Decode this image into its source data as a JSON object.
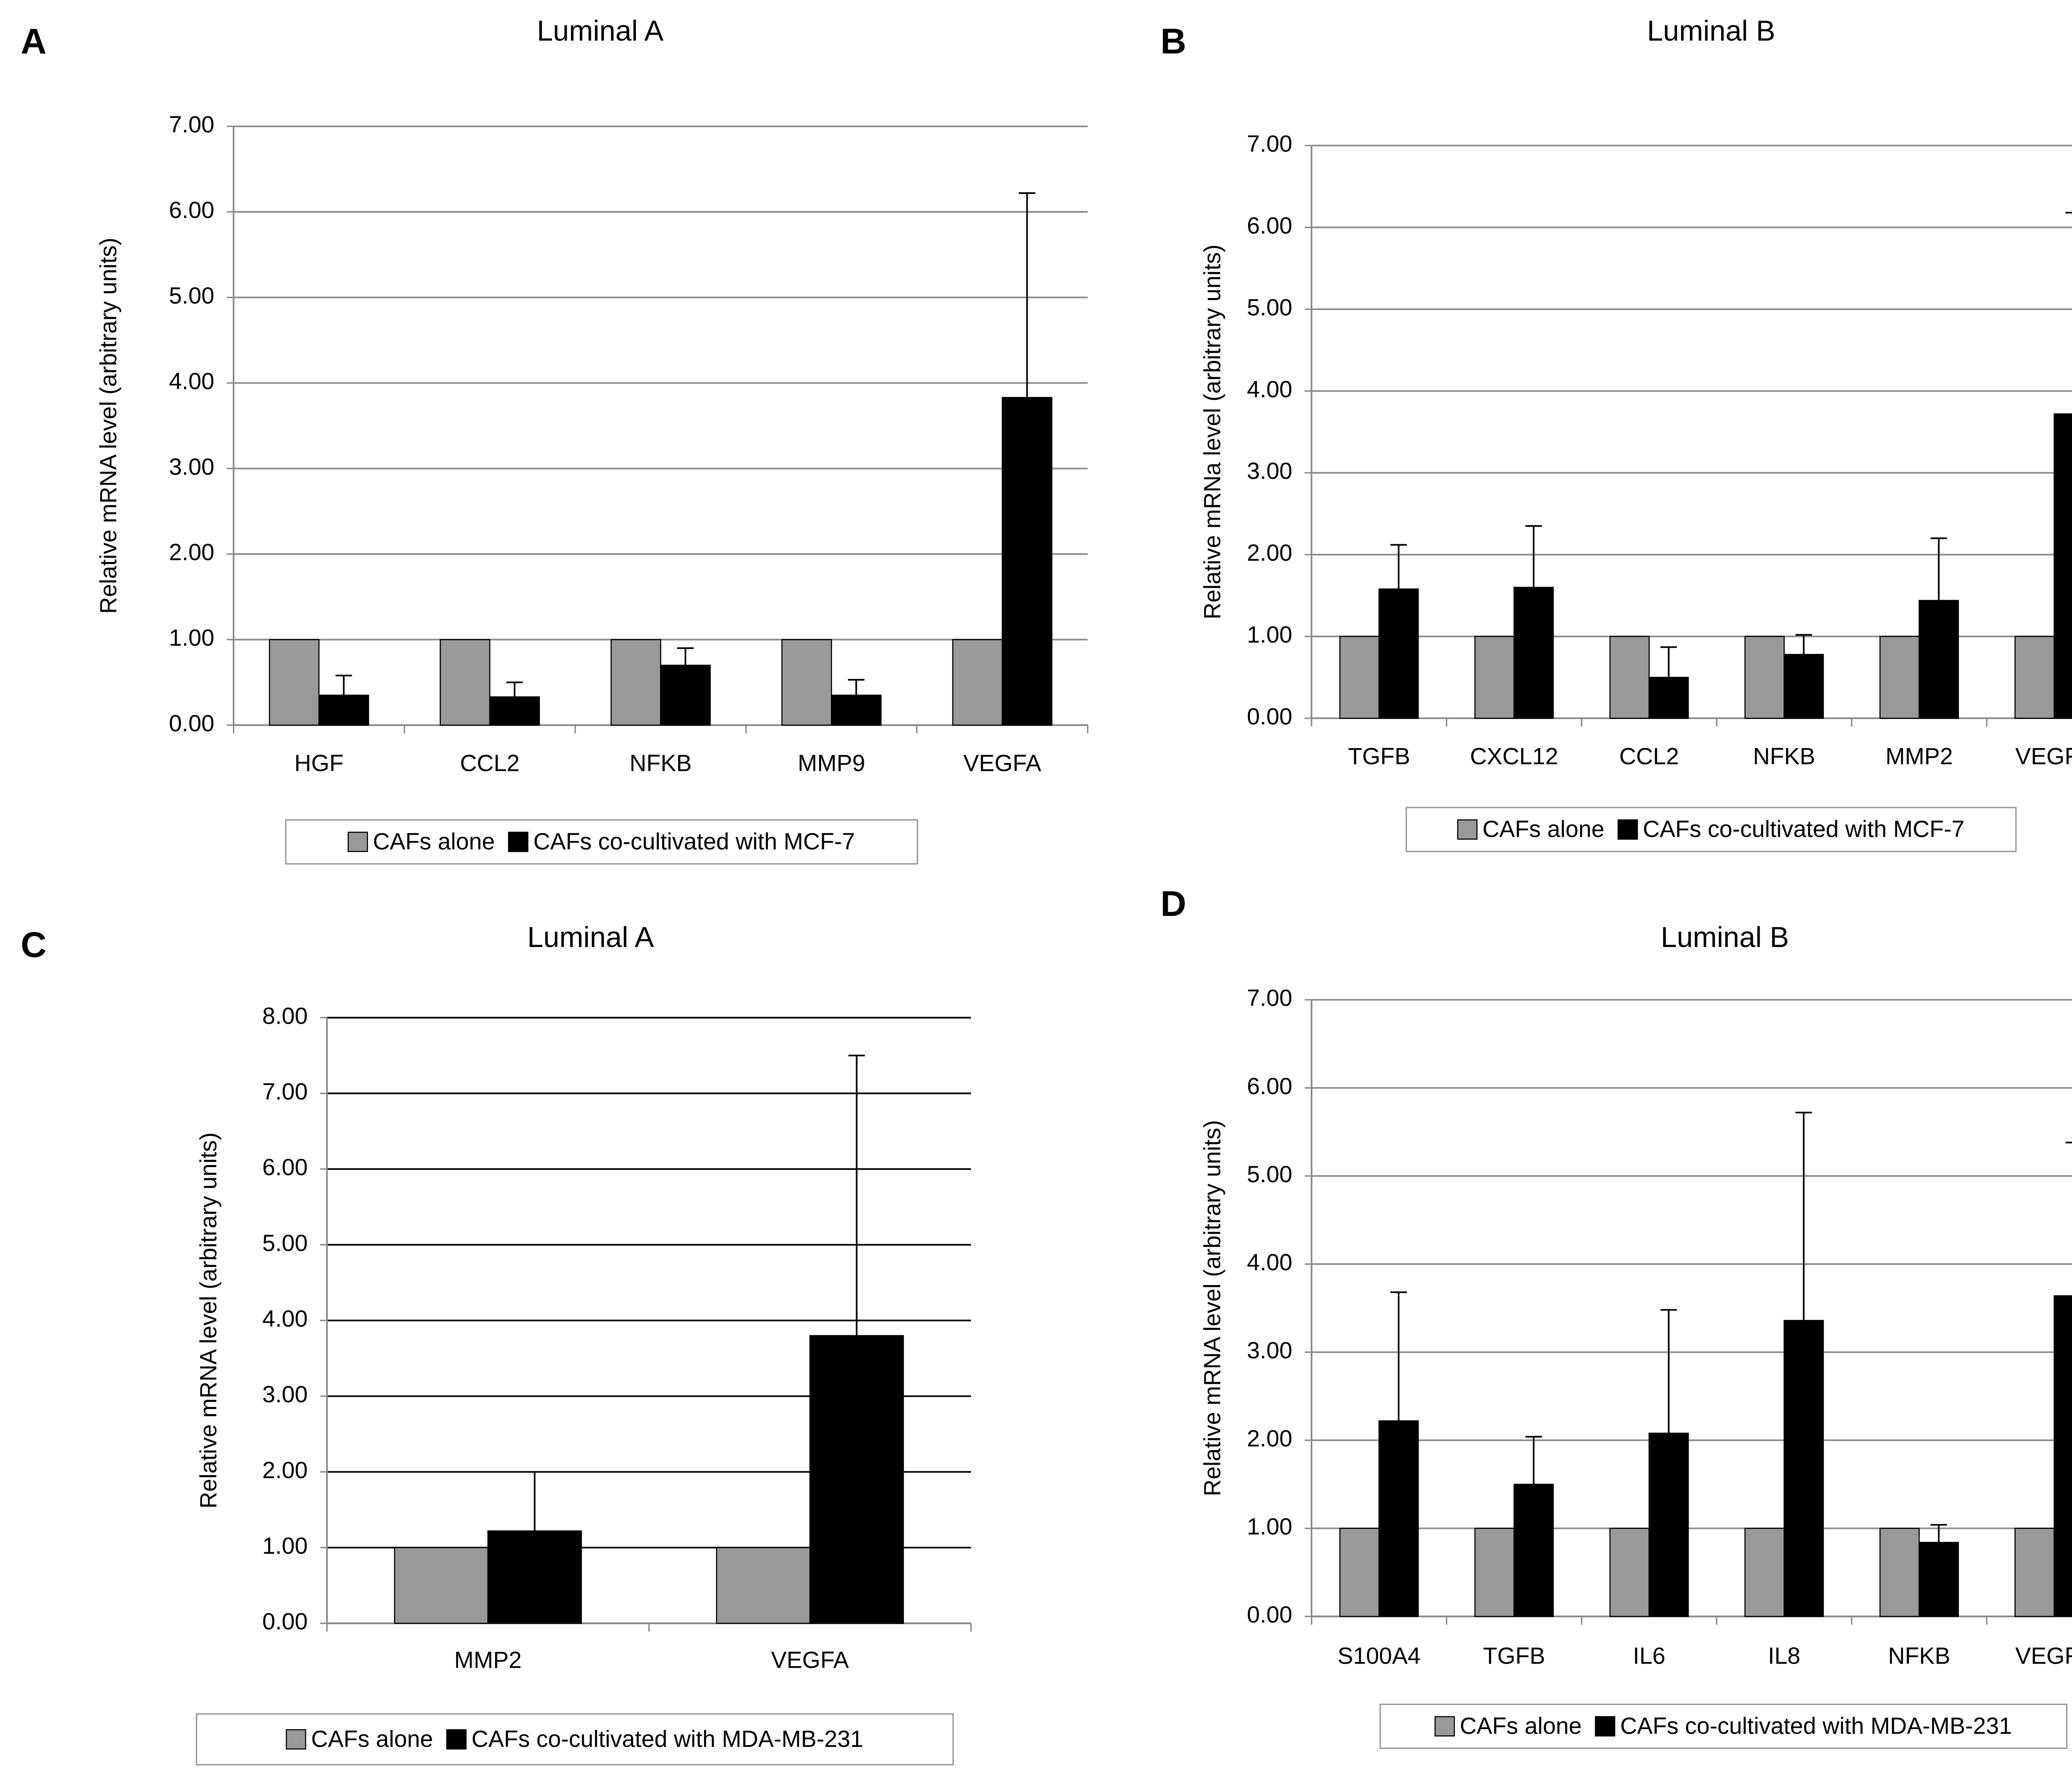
{
  "chart_data": [
    {
      "type": "bar",
      "panel": "A",
      "title": "Luminal A",
      "ylabel": "Relative mRNA level (arbitrary units)",
      "categories": [
        "HGF",
        "CCL2",
        "NFKB",
        "MMP9",
        "VEGFA"
      ],
      "series": [
        {
          "name": "CAFs alone",
          "color": "#999999",
          "values": [
            1,
            1,
            1,
            1,
            1
          ]
        },
        {
          "name": "CAFs co-cultivated with MCF-7",
          "color": "#000000",
          "values": [
            0.35,
            0.33,
            0.7,
            0.35,
            3.83
          ],
          "errors": [
            0.23,
            0.17,
            0.2,
            0.18,
            2.39
          ]
        }
      ],
      "ylim": [
        0,
        7
      ],
      "yticks": [
        {
          "value": 0,
          "label": "0.00"
        },
        {
          "value": 1,
          "label": "1.00"
        },
        {
          "value": 2,
          "label": "2.00"
        },
        {
          "value": 3,
          "label": "3.00"
        },
        {
          "value": 4,
          "label": "4.00"
        },
        {
          "value": 5,
          "label": "5.00"
        },
        {
          "value": 6,
          "label": "6.00"
        },
        {
          "value": 7,
          "label": "7.00"
        }
      ],
      "grid": true,
      "grid_color": "#8c8c8c",
      "legend": "bottom"
    },
    {
      "type": "bar",
      "panel": "B",
      "title": "Luminal B",
      "ylabel": "Relative mRNa level (arbitrary units)",
      "categories": [
        "TGFB",
        "CXCL12",
        "CCL2",
        "NFKB",
        "MMP2",
        "VEGFA"
      ],
      "series": [
        {
          "name": "CAFs alone",
          "color": "#999999",
          "values": [
            1,
            1,
            1,
            1,
            1,
            1
          ]
        },
        {
          "name": "CAFs co-cultivated with MCF-7",
          "color": "#000000",
          "values": [
            1.58,
            1.6,
            0.5,
            0.78,
            1.44,
            3.72
          ],
          "errors": [
            0.54,
            0.75,
            0.37,
            0.24,
            0.76,
            2.46
          ]
        }
      ],
      "ylim": [
        0,
        7
      ],
      "yticks": [
        {
          "value": 0,
          "label": "0.00"
        },
        {
          "value": 1,
          "label": "1.00"
        },
        {
          "value": 2,
          "label": "2.00"
        },
        {
          "value": 3,
          "label": "3.00"
        },
        {
          "value": 4,
          "label": "4.00"
        },
        {
          "value": 5,
          "label": "5.00"
        },
        {
          "value": 6,
          "label": "6.00"
        },
        {
          "value": 7,
          "label": "7.00"
        }
      ],
      "grid": true,
      "grid_color": "#8c8c8c",
      "legend": "bottom"
    },
    {
      "type": "bar",
      "panel": "C",
      "title": "Luminal A",
      "ylabel": "Relative  mRNA level  (arbitrary  units)",
      "categories": [
        "MMP2",
        "VEGFA"
      ],
      "series": [
        {
          "name": "CAFs alone",
          "color": "#999999",
          "values": [
            1,
            1
          ]
        },
        {
          "name": "CAFs co-cultivated with MDA-MB-231",
          "color": "#000000",
          "values": [
            1.22,
            3.8
          ],
          "errors": [
            0.78,
            3.7
          ]
        }
      ],
      "ylim": [
        0,
        8
      ],
      "yticks": [
        {
          "value": 0,
          "label": "0.00"
        },
        {
          "value": 1,
          "label": "1.00"
        },
        {
          "value": 2,
          "label": "2.00"
        },
        {
          "value": 3,
          "label": "3.00"
        },
        {
          "value": 4,
          "label": "4.00"
        },
        {
          "value": 5,
          "label": "5.00"
        },
        {
          "value": 6,
          "label": "6.00"
        },
        {
          "value": 7,
          "label": "7.00"
        },
        {
          "value": 8,
          "label": "8.00"
        }
      ],
      "grid": true,
      "grid_color": "#000000",
      "legend": "bottom"
    },
    {
      "type": "bar",
      "panel": "D",
      "title": "Luminal B",
      "ylabel": "Relative mRNA level (arbitrary units)",
      "categories": [
        "S100A4",
        "TGFB",
        "IL6",
        "IL8",
        "NFKB",
        "VEGFA"
      ],
      "series": [
        {
          "name": "CAFs alone",
          "color": "#999999",
          "values": [
            1,
            1,
            1,
            1,
            1,
            1
          ]
        },
        {
          "name": "CAFs co-cultivated with MDA-MB-231",
          "color": "#000000",
          "values": [
            2.22,
            1.5,
            2.08,
            3.36,
            0.84,
            3.64
          ],
          "errors": [
            1.46,
            0.54,
            1.4,
            2.36,
            0.2,
            1.74
          ]
        }
      ],
      "ylim": [
        0,
        7
      ],
      "yticks": [
        {
          "value": 0,
          "label": "0.00"
        },
        {
          "value": 1,
          "label": "1.00"
        },
        {
          "value": 2,
          "label": "2.00"
        },
        {
          "value": 3,
          "label": "3.00"
        },
        {
          "value": 4,
          "label": "4.00"
        },
        {
          "value": 5,
          "label": "5.00"
        },
        {
          "value": 6,
          "label": "6.00"
        },
        {
          "value": 7,
          "label": "7.00"
        }
      ],
      "grid": true,
      "grid_color": "#8c8c8c",
      "legend": "bottom"
    }
  ]
}
